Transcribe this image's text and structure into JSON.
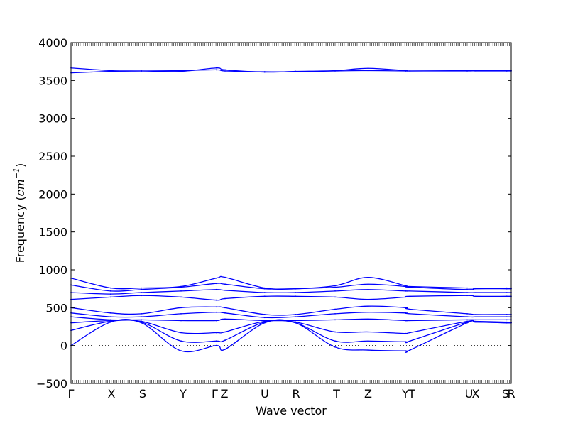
{
  "chart_data": {
    "type": "line",
    "title": "",
    "xlabel": "Wave vector",
    "ylabel": {
      "prefix": "Frequency (",
      "unit_base": "cm",
      "unit_exp": "−1",
      "suffix": ")"
    },
    "ylim": [
      -500,
      4000
    ],
    "yticks": [
      -500,
      0,
      500,
      1000,
      1500,
      2000,
      2500,
      3000,
      3500,
      4000
    ],
    "xlim": [
      0,
      1
    ],
    "high_symmetry_points": [
      {
        "label": "Γ",
        "x": 0.0
      },
      {
        "label": "X",
        "x": 0.0919
      },
      {
        "label": "S",
        "x": 0.1629
      },
      {
        "label": "Y",
        "x": 0.2548
      },
      {
        "label": "Γ",
        "x": 0.3266
      },
      {
        "label": "Z",
        "x": 0.3484
      },
      {
        "label": "U",
        "x": 0.4403
      },
      {
        "label": "R",
        "x": 0.5113
      },
      {
        "label": "T",
        "x": 0.6032
      },
      {
        "label": "Z",
        "x": 0.675
      },
      {
        "label": "Y",
        "x": 0.7597
      },
      {
        "label": "T",
        "x": 0.7742
      },
      {
        "label": "U",
        "x": 0.904
      },
      {
        "label": "X",
        "x": 0.9194
      },
      {
        "label": "S",
        "x": 0.9871
      },
      {
        "label": "R",
        "x": 1.0
      }
    ],
    "zero_line": {
      "y": 0,
      "style": "dotted"
    },
    "line_color": "#0000ff",
    "series": [
      {
        "x": [
          0,
          0.09,
          0.16,
          0.25,
          0.33,
          0.35,
          0.44,
          0.51,
          0.6,
          0.675,
          0.76,
          0.77,
          0.9,
          0.92,
          0.99,
          1.0
        ],
        "y": [
          3665,
          3630,
          3625,
          3620,
          3665,
          3640,
          3610,
          3620,
          3630,
          3660,
          3630,
          3625,
          3630,
          3625,
          3625,
          3625
        ]
      },
      {
        "x": [
          0,
          0.09,
          0.16,
          0.25,
          0.33,
          0.35,
          0.44,
          0.51,
          0.6,
          0.675,
          0.76,
          0.77,
          0.9,
          0.92,
          0.99,
          1.0
        ],
        "y": [
          3600,
          3620,
          3625,
          3630,
          3640,
          3625,
          3615,
          3615,
          3625,
          3630,
          3625,
          3625,
          3625,
          3630,
          3630,
          3630
        ]
      },
      {
        "x": [
          0,
          0.09,
          0.16,
          0.25,
          0.33,
          0.35,
          0.44,
          0.51,
          0.6,
          0.675,
          0.76,
          0.77,
          0.9,
          0.92,
          0.99,
          1.0
        ],
        "y": [
          890,
          760,
          760,
          780,
          890,
          900,
          760,
          750,
          790,
          900,
          790,
          780,
          760,
          760,
          760,
          760
        ]
      },
      {
        "x": [
          0,
          0.09,
          0.16,
          0.25,
          0.33,
          0.35,
          0.44,
          0.51,
          0.6,
          0.675,
          0.76,
          0.77,
          0.9,
          0.92,
          0.99,
          1.0
        ],
        "y": [
          800,
          720,
          740,
          770,
          820,
          810,
          750,
          750,
          770,
          810,
          780,
          770,
          740,
          750,
          750,
          750
        ]
      },
      {
        "x": [
          0,
          0.09,
          0.16,
          0.25,
          0.33,
          0.35,
          0.44,
          0.51,
          0.6,
          0.675,
          0.76,
          0.77,
          0.9,
          0.92,
          0.99,
          1.0
        ],
        "y": [
          700,
          680,
          700,
          720,
          740,
          730,
          700,
          700,
          720,
          740,
          720,
          720,
          700,
          700,
          700,
          700
        ]
      },
      {
        "x": [
          0,
          0.09,
          0.16,
          0.25,
          0.33,
          0.35,
          0.44,
          0.51,
          0.6,
          0.675,
          0.76,
          0.77,
          0.9,
          0.92,
          0.99,
          1.0
        ],
        "y": [
          610,
          640,
          660,
          640,
          600,
          620,
          650,
          650,
          640,
          610,
          640,
          650,
          660,
          650,
          650,
          650
        ]
      },
      {
        "x": [
          0,
          0.09,
          0.16,
          0.25,
          0.33,
          0.35,
          0.44,
          0.51,
          0.6,
          0.675,
          0.76,
          0.77,
          0.9,
          0.92,
          0.99,
          1.0
        ],
        "y": [
          500,
          430,
          420,
          500,
          510,
          500,
          410,
          410,
          480,
          520,
          500,
          480,
          420,
          410,
          410,
          410
        ]
      },
      {
        "x": [
          0,
          0.09,
          0.16,
          0.25,
          0.33,
          0.35,
          0.44,
          0.51,
          0.6,
          0.675,
          0.76,
          0.77,
          0.9,
          0.92,
          0.99,
          1.0
        ],
        "y": [
          430,
          380,
          380,
          420,
          440,
          430,
          370,
          380,
          420,
          440,
          430,
          420,
          380,
          380,
          380,
          380
        ]
      },
      {
        "x": [
          0,
          0.09,
          0.16,
          0.25,
          0.33,
          0.35,
          0.44,
          0.51,
          0.6,
          0.675,
          0.76,
          0.77,
          0.9,
          0.92,
          0.99,
          1.0
        ],
        "y": [
          380,
          340,
          340,
          330,
          330,
          350,
          330,
          330,
          340,
          350,
          330,
          330,
          340,
          340,
          340,
          340
        ]
      },
      {
        "x": [
          0,
          0.09,
          0.16,
          0.25,
          0.33,
          0.35,
          0.44,
          0.51,
          0.6,
          0.675,
          0.76,
          0.77,
          0.9,
          0.92,
          0.99,
          1.0
        ],
        "y": [
          300,
          330,
          320,
          170,
          170,
          180,
          320,
          310,
          180,
          180,
          160,
          170,
          320,
          320,
          310,
          310
        ]
      },
      {
        "x": [
          0,
          0.09,
          0.16,
          0.25,
          0.33,
          0.35,
          0.44,
          0.51,
          0.6,
          0.675,
          0.76,
          0.77,
          0.9,
          0.92,
          0.99,
          1.0
        ],
        "y": [
          200,
          320,
          310,
          60,
          60,
          70,
          310,
          300,
          60,
          60,
          50,
          60,
          310,
          310,
          300,
          300
        ]
      },
      {
        "x": [
          0,
          0.09,
          0.16,
          0.25,
          0.33,
          0.35,
          0.44,
          0.51,
          0.6,
          0.675,
          0.76,
          0.77,
          0.9,
          0.92,
          0.99,
          1.0
        ],
        "y": [
          0,
          310,
          300,
          -70,
          0,
          -50,
          300,
          300,
          -20,
          -60,
          -70,
          -60,
          300,
          310,
          300,
          300
        ]
      }
    ]
  }
}
